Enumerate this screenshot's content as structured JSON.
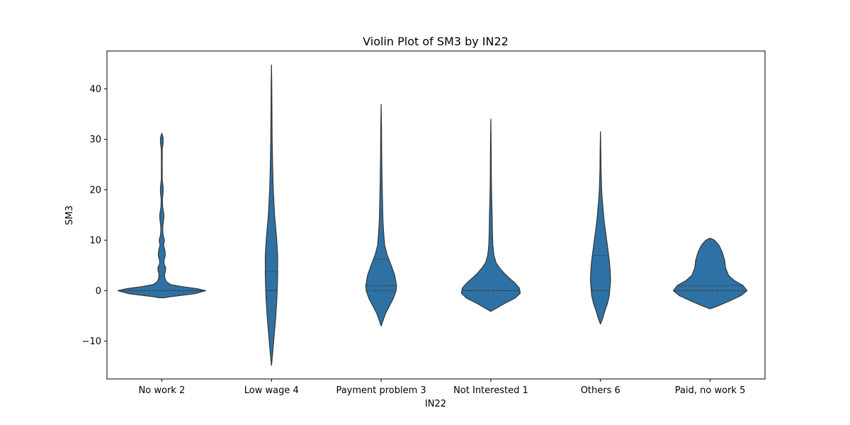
{
  "chart_data": {
    "type": "violin",
    "title": "Violin Plot of SM3 by IN22",
    "xlabel": "IN22",
    "ylabel": "SM3",
    "ylim": [
      -17.5,
      47.5
    ],
    "yticks": [
      -10,
      0,
      10,
      20,
      30,
      40
    ],
    "grid": false,
    "color": "#2e72a5",
    "edge_color": "#3a3a3a",
    "categories": [
      "No work 2",
      "Low wage 4",
      "Payment problem 3",
      "Not Interested 1",
      "Others 6",
      "Paid, no work 5"
    ],
    "violins": [
      {
        "category": "No work 2",
        "min": -1.4,
        "max": 31.2,
        "quartiles": [
          0,
          0,
          3
        ],
        "profile": [
          [
            -1.4,
            0.05
          ],
          [
            -1.2,
            0.2
          ],
          [
            -1.0,
            0.38
          ],
          [
            -0.6,
            0.75
          ],
          [
            0.0,
            1.0
          ],
          [
            0.4,
            0.8
          ],
          [
            0.8,
            0.45
          ],
          [
            1.2,
            0.2
          ],
          [
            1.8,
            0.1
          ],
          [
            2.5,
            0.07
          ],
          [
            3.2,
            0.06
          ],
          [
            3.8,
            0.08
          ],
          [
            4.5,
            0.09
          ],
          [
            5.3,
            0.05
          ],
          [
            6.0,
            0.05
          ],
          [
            7.0,
            0.08
          ],
          [
            8.0,
            0.07
          ],
          [
            9.0,
            0.04
          ],
          [
            10.0,
            0.06
          ],
          [
            11.0,
            0.03
          ],
          [
            12.0,
            0.02
          ],
          [
            13.0,
            0.025
          ],
          [
            14.3,
            0.045
          ],
          [
            15.2,
            0.045
          ],
          [
            16.5,
            0.02
          ],
          [
            18.0,
            0.012
          ],
          [
            19.5,
            0.03
          ],
          [
            20.5,
            0.03
          ],
          [
            22.0,
            0.01
          ],
          [
            25.0,
            0.008
          ],
          [
            28.0,
            0.01
          ],
          [
            29.3,
            0.03
          ],
          [
            30.3,
            0.03
          ],
          [
            31.2,
            0.0
          ]
        ]
      },
      {
        "category": "Low wage 4",
        "min": -14.8,
        "max": 44.7,
        "quartiles": [
          0,
          0,
          3.8
        ],
        "profile": [
          [
            -14.8,
            0.0
          ],
          [
            -13.0,
            0.02
          ],
          [
            -10.0,
            0.05
          ],
          [
            -6.0,
            0.09
          ],
          [
            -2.0,
            0.12
          ],
          [
            0.0,
            0.13
          ],
          [
            3.0,
            0.14
          ],
          [
            7.0,
            0.14
          ],
          [
            10.0,
            0.12
          ],
          [
            15.0,
            0.07
          ],
          [
            20.0,
            0.04
          ],
          [
            25.0,
            0.025
          ],
          [
            30.0,
            0.015
          ],
          [
            36.0,
            0.01
          ],
          [
            41.0,
            0.006
          ],
          [
            44.7,
            0.0
          ]
        ]
      },
      {
        "category": "Payment problem 3",
        "min": -7.0,
        "max": 36.9,
        "quartiles": [
          0,
          1,
          6.2
        ],
        "profile": [
          [
            -7.0,
            0.0
          ],
          [
            -6.0,
            0.04
          ],
          [
            -4.5,
            0.1
          ],
          [
            -3.0,
            0.19
          ],
          [
            -1.5,
            0.28
          ],
          [
            0.0,
            0.34
          ],
          [
            1.0,
            0.35
          ],
          [
            3.0,
            0.31
          ],
          [
            5.0,
            0.23
          ],
          [
            7.0,
            0.14
          ],
          [
            9.0,
            0.08
          ],
          [
            11.0,
            0.06
          ],
          [
            14.0,
            0.04
          ],
          [
            18.0,
            0.03
          ],
          [
            22.0,
            0.02
          ],
          [
            27.0,
            0.012
          ],
          [
            32.0,
            0.008
          ],
          [
            36.9,
            0.0
          ]
        ]
      },
      {
        "category": "Not Interested 1",
        "min": -4.1,
        "max": 34.0,
        "quartiles": [
          0,
          0,
          0
        ],
        "profile": [
          [
            -4.1,
            0.0
          ],
          [
            -3.5,
            0.12
          ],
          [
            -2.5,
            0.32
          ],
          [
            -1.5,
            0.55
          ],
          [
            -0.5,
            0.67
          ],
          [
            0.5,
            0.65
          ],
          [
            1.5,
            0.55
          ],
          [
            2.5,
            0.42
          ],
          [
            3.5,
            0.3
          ],
          [
            4.5,
            0.2
          ],
          [
            5.5,
            0.12
          ],
          [
            7.0,
            0.07
          ],
          [
            9.0,
            0.045
          ],
          [
            12.0,
            0.035
          ],
          [
            15.0,
            0.03
          ],
          [
            18.0,
            0.02
          ],
          [
            22.0,
            0.012
          ],
          [
            28.0,
            0.008
          ],
          [
            34.0,
            0.0
          ]
        ]
      },
      {
        "category": "Others 6",
        "min": -6.6,
        "max": 31.5,
        "quartiles": [
          0,
          0,
          7
        ],
        "profile": [
          [
            -6.6,
            0.0
          ],
          [
            -5.5,
            0.05
          ],
          [
            -4.0,
            0.1
          ],
          [
            -2.5,
            0.16
          ],
          [
            -1.0,
            0.2
          ],
          [
            0.0,
            0.21
          ],
          [
            2.0,
            0.23
          ],
          [
            4.0,
            0.22
          ],
          [
            6.0,
            0.2
          ],
          [
            8.0,
            0.17
          ],
          [
            10.0,
            0.14
          ],
          [
            12.0,
            0.11
          ],
          [
            14.0,
            0.08
          ],
          [
            16.0,
            0.06
          ],
          [
            18.0,
            0.04
          ],
          [
            20.0,
            0.025
          ],
          [
            24.0,
            0.012
          ],
          [
            28.0,
            0.007
          ],
          [
            31.5,
            0.0
          ]
        ]
      },
      {
        "category": "Paid, no work 5",
        "min": -3.6,
        "max": 10.4,
        "quartiles": [
          0,
          0,
          1
        ],
        "profile": [
          [
            -3.6,
            0.0
          ],
          [
            -3.0,
            0.18
          ],
          [
            -2.0,
            0.45
          ],
          [
            -1.0,
            0.7
          ],
          [
            0.0,
            0.84
          ],
          [
            1.0,
            0.75
          ],
          [
            2.0,
            0.55
          ],
          [
            3.0,
            0.42
          ],
          [
            4.5,
            0.35
          ],
          [
            6.0,
            0.33
          ],
          [
            7.5,
            0.28
          ],
          [
            9.0,
            0.2
          ],
          [
            10.0,
            0.1
          ],
          [
            10.4,
            0.0
          ]
        ]
      }
    ]
  }
}
